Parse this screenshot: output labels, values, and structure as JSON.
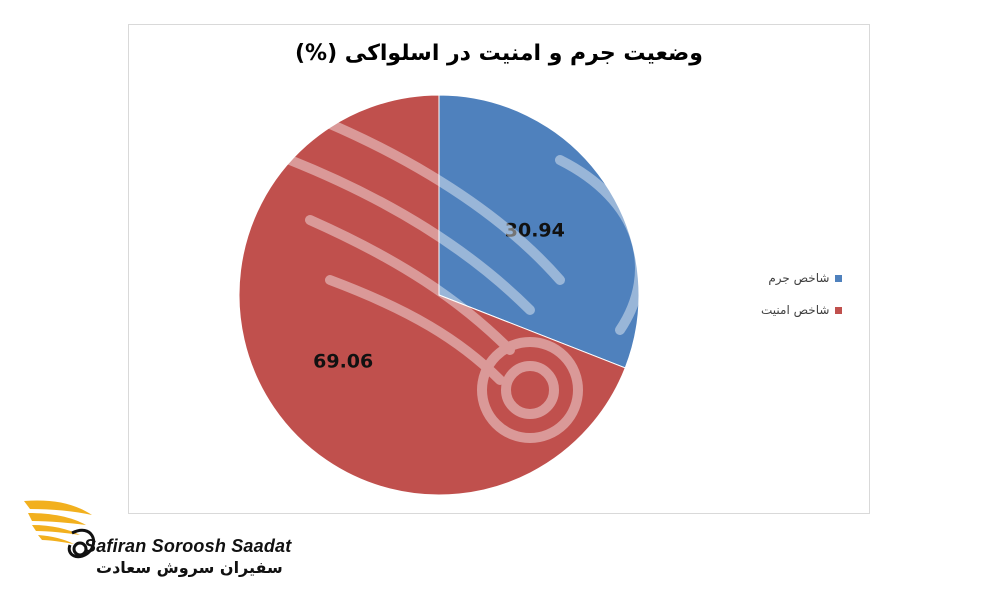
{
  "chart_data": {
    "type": "pie",
    "title": "وضعیت جرم و امنیت در اسلواکی (%)",
    "slices": [
      {
        "name": "شاخص جرم",
        "value": 30.94,
        "label": "30.94",
        "color": "#4f81bd"
      },
      {
        "name": "شاخص امنیت",
        "value": 69.06,
        "label": "69.06",
        "color": "#c0504d"
      }
    ],
    "legend_position": "right"
  },
  "brand": {
    "name_en": "Safiran Soroosh Saadat",
    "name_fa": "سفیران سروش سعادت"
  }
}
